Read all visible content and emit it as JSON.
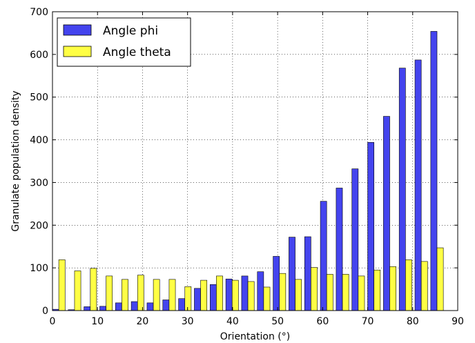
{
  "chart_data": {
    "type": "bar",
    "xlabel": "Orientation (°)",
    "ylabel": "Granulate population density",
    "xlim": [
      0,
      90
    ],
    "ylim": [
      0,
      700
    ],
    "xticks": [
      "0",
      "10",
      "20",
      "30",
      "40",
      "50",
      "60",
      "70",
      "80",
      "90"
    ],
    "yticks": [
      "0",
      "100",
      "200",
      "300",
      "400",
      "500",
      "600",
      "700"
    ],
    "grid": true,
    "legend_position": "top-left",
    "bin_starts": [
      0,
      3.5,
      7,
      10.5,
      14,
      17.5,
      21,
      24.5,
      28,
      31.5,
      35,
      38.5,
      42,
      45.5,
      49,
      52.5,
      56,
      59.5,
      63,
      66.5,
      70,
      73.5,
      77,
      80.5,
      84,
      87.5
    ],
    "bin_width": 3.5,
    "series": [
      {
        "name": "Angle phi",
        "color": "#4444ee",
        "values": [
          3,
          2,
          9,
          10,
          18,
          21,
          18,
          25,
          28,
          52,
          61,
          74,
          81,
          91,
          127,
          172,
          173,
          256,
          287,
          332,
          394,
          455,
          568,
          587,
          654,
          0
        ]
      },
      {
        "name": "Angle theta",
        "color": "#ffff44",
        "values": [
          119,
          93,
          99,
          81,
          73,
          83,
          73,
          73,
          56,
          71,
          81,
          71,
          68,
          55,
          87,
          73,
          101,
          85,
          85,
          81,
          95,
          103,
          119,
          115,
          147,
          0
        ]
      }
    ]
  }
}
